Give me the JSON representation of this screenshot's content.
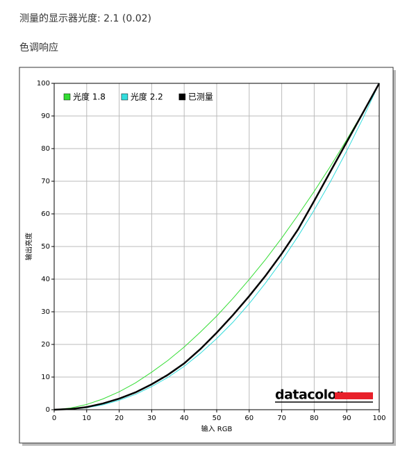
{
  "header": {
    "measured_gamma": "测量的显示器光度:  2.1 (0.02)",
    "section": "色调响应"
  },
  "chart_data": {
    "type": "line",
    "x_label": "输入 RGB",
    "y_label": "输出亮度",
    "logo": "datacolor",
    "x": [
      0,
      5,
      10,
      15,
      20,
      25,
      30,
      35,
      40,
      45,
      50,
      55,
      60,
      65,
      70,
      75,
      80,
      85,
      90,
      95,
      100
    ],
    "series": [
      {
        "name": "光度 1.8",
        "color": "#33dd33",
        "values": [
          0,
          0.5,
          1.6,
          3.3,
          5.5,
          8.2,
          11.5,
          15.1,
          19.2,
          23.8,
          28.7,
          34.1,
          39.9,
          46.0,
          52.6,
          59.6,
          66.9,
          74.6,
          82.7,
          91.2,
          100
        ]
      },
      {
        "name": "光度 2.2",
        "color": "#33dddd",
        "values": [
          0,
          0.1,
          0.6,
          1.5,
          2.9,
          4.7,
          7.1,
          9.9,
          13.3,
          17.3,
          21.8,
          26.8,
          32.5,
          38.8,
          45.6,
          53.1,
          61.2,
          69.9,
          79.3,
          89.3,
          100
        ]
      },
      {
        "name": "已测量",
        "color": "#000000",
        "values": [
          0,
          0.2,
          0.8,
          1.9,
          3.4,
          5.3,
          7.8,
          10.7,
          14.2,
          18.6,
          23.6,
          29.0,
          34.8,
          41.0,
          47.8,
          55.2,
          64.0,
          73.0,
          82.0,
          91.0,
          100
        ]
      }
    ],
    "xlim": [
      0,
      100
    ],
    "ylim": [
      0,
      100
    ],
    "xticks": [
      0,
      10,
      20,
      30,
      40,
      50,
      60,
      70,
      80,
      90,
      100
    ],
    "yticks": [
      0,
      10,
      20,
      30,
      40,
      50,
      60,
      70,
      80,
      90,
      100
    ],
    "grid": true,
    "legend": "top-left"
  }
}
